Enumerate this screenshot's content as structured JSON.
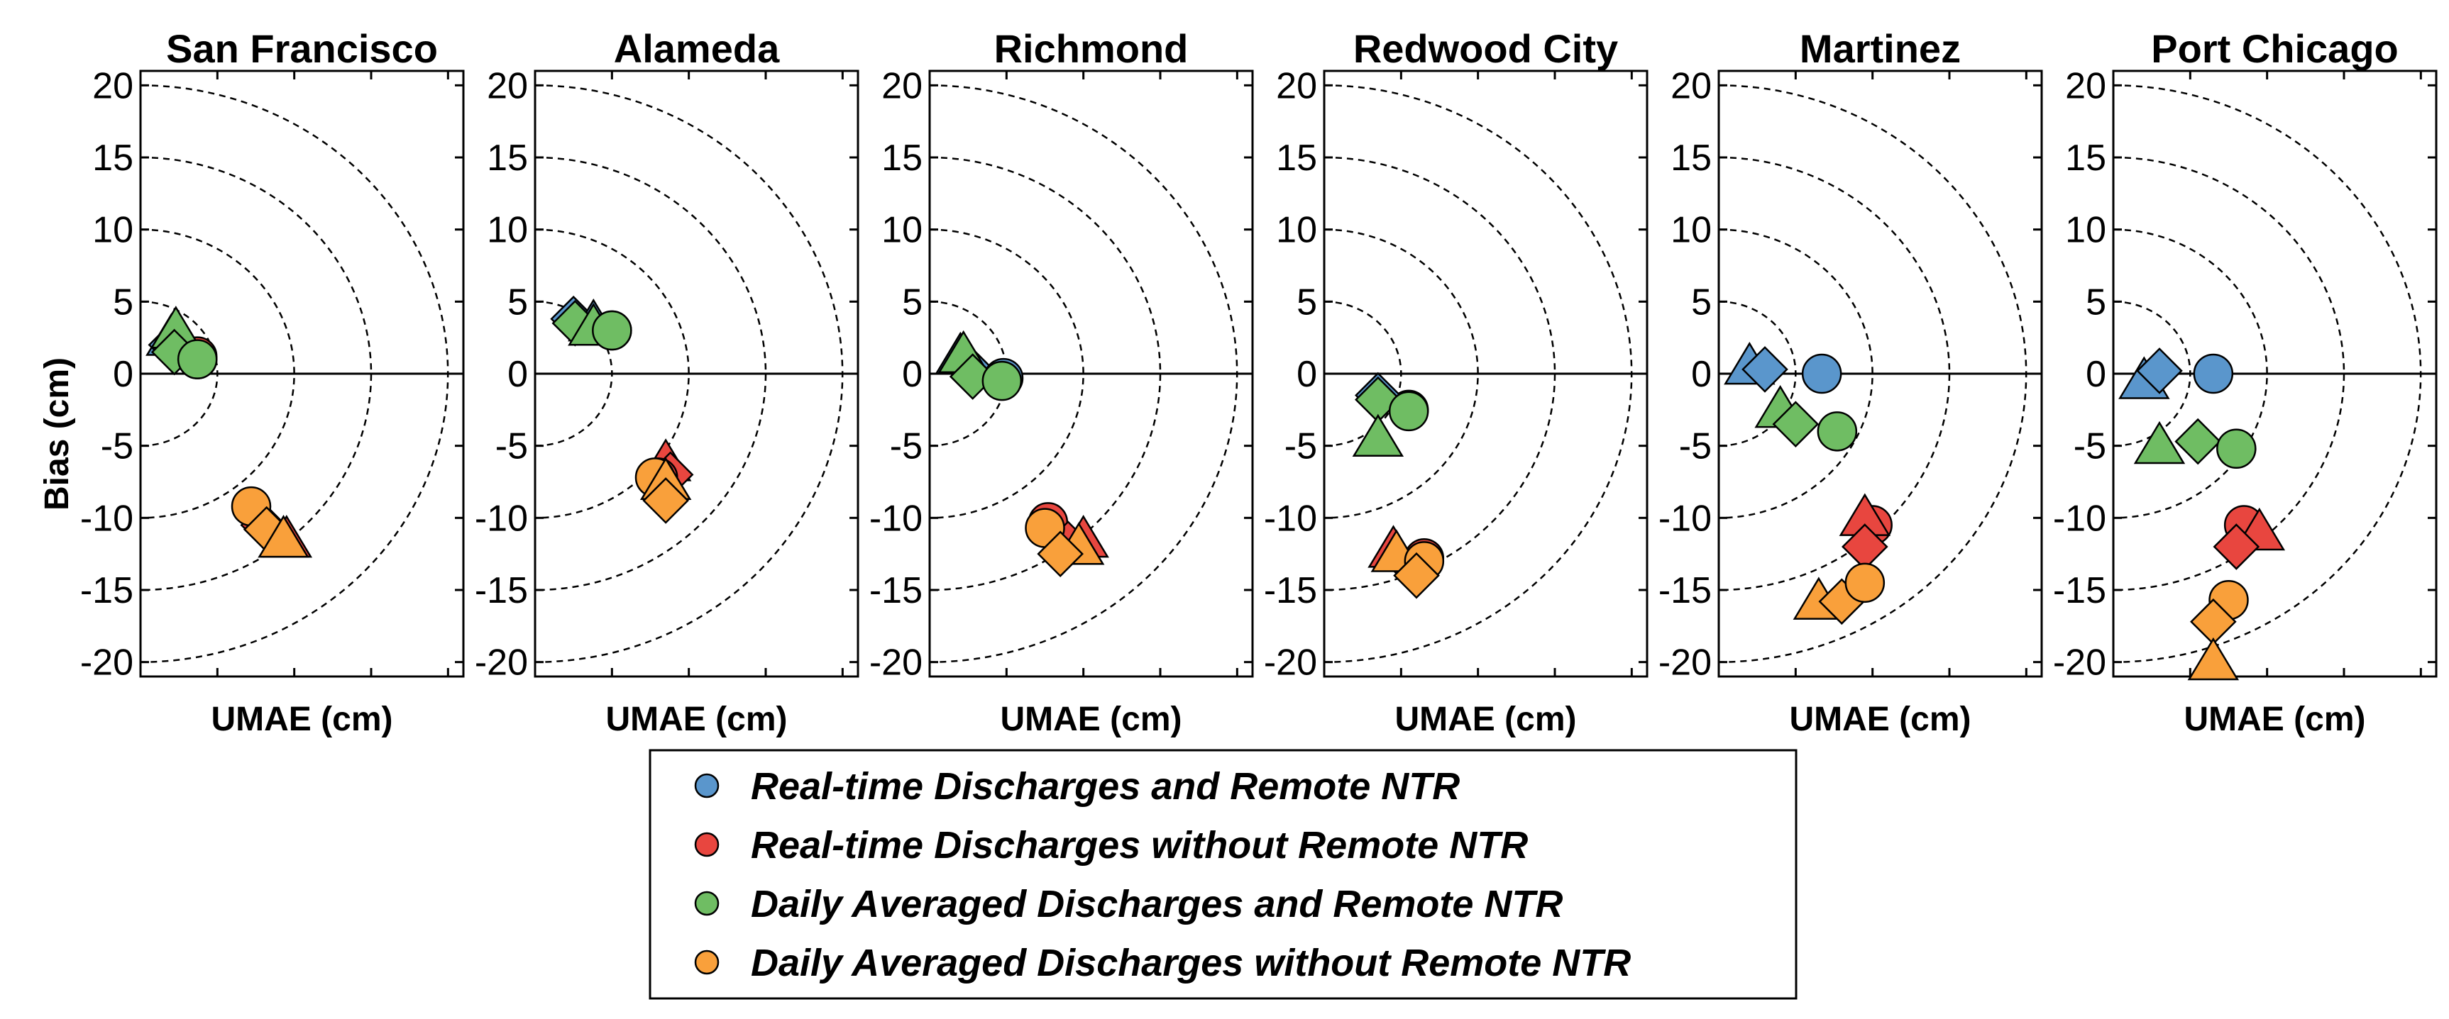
{
  "chart_data": {
    "type": "scatter",
    "ylabel": "Bias (cm)",
    "xlabel": "UMAE (cm)",
    "ylim": [
      -21,
      21
    ],
    "xlim": [
      0,
      21
    ],
    "yticks": [
      20,
      15,
      10,
      5,
      0,
      -5,
      -10,
      -15,
      -20
    ],
    "ytick_labels": [
      "20",
      "15",
      "10",
      "5",
      "0",
      "-5",
      "-10",
      "-15",
      "-20"
    ],
    "xticks": [
      0,
      5,
      10,
      15,
      20
    ],
    "radii": [
      5,
      10,
      15,
      20
    ],
    "colors": {
      "Real-time Discharges and Remote NTR": "#5a96cc",
      "Real-time Discharges without Remote NTR": "#e8463f",
      "Daily Averaged Discharges and Remote NTR": "#6fbd63",
      "Daily Averaged Discharges without Remote NTR": "#f9a03b"
    },
    "legend": [
      "Real-time Discharges and Remote NTR",
      "Real-time Discharges without Remote NTR",
      "Daily Averaged Discharges and Remote NTR",
      "Daily Averaged Discharges without Remote NTR"
    ],
    "legend_position": "bottom-center",
    "panels": [
      {
        "title": "San Francisco",
        "points": [
          {
            "series": 0,
            "marker": "triangle",
            "x": 2.0,
            "y": 2.5
          },
          {
            "series": 0,
            "marker": "diamond",
            "x": 2.0,
            "y": 2.0
          },
          {
            "series": 0,
            "marker": "circle",
            "x": 3.7,
            "y": 1.0
          },
          {
            "series": 1,
            "marker": "circle",
            "x": 3.7,
            "y": 1.2
          },
          {
            "series": 1,
            "marker": "triangle",
            "x": 9.5,
            "y": -11.5
          },
          {
            "series": 1,
            "marker": "diamond",
            "x": 8.0,
            "y": -10.5
          },
          {
            "series": 2,
            "marker": "triangle",
            "x": 2.3,
            "y": 3.0
          },
          {
            "series": 2,
            "marker": "diamond",
            "x": 2.2,
            "y": 1.5
          },
          {
            "series": 2,
            "marker": "circle",
            "x": 3.7,
            "y": 1.0
          },
          {
            "series": 3,
            "marker": "circle",
            "x": 7.2,
            "y": -9.2
          },
          {
            "series": 3,
            "marker": "diamond",
            "x": 8.2,
            "y": -10.8
          },
          {
            "series": 3,
            "marker": "triangle",
            "x": 9.3,
            "y": -11.5
          }
        ]
      },
      {
        "title": "Alameda",
        "points": [
          {
            "series": 0,
            "marker": "diamond",
            "x": 2.5,
            "y": 3.8
          },
          {
            "series": 0,
            "marker": "triangle",
            "x": 3.8,
            "y": 3.5
          },
          {
            "series": 0,
            "marker": "circle",
            "x": 5.0,
            "y": 3.0
          },
          {
            "series": 1,
            "marker": "triangle",
            "x": 8.5,
            "y": -6.2
          },
          {
            "series": 1,
            "marker": "diamond",
            "x": 8.8,
            "y": -7.0
          },
          {
            "series": 1,
            "marker": "circle",
            "x": 8.0,
            "y": -7.2
          },
          {
            "series": 2,
            "marker": "diamond",
            "x": 2.6,
            "y": 3.5
          },
          {
            "series": 2,
            "marker": "triangle",
            "x": 3.8,
            "y": 3.2
          },
          {
            "series": 2,
            "marker": "circle",
            "x": 5.0,
            "y": 3.0
          },
          {
            "series": 3,
            "marker": "circle",
            "x": 7.8,
            "y": -7.2
          },
          {
            "series": 3,
            "marker": "triangle",
            "x": 8.5,
            "y": -7.5
          },
          {
            "series": 3,
            "marker": "diamond",
            "x": 8.5,
            "y": -8.8
          }
        ]
      },
      {
        "title": "Richmond",
        "points": [
          {
            "series": 0,
            "marker": "triangle",
            "x": 2.0,
            "y": 1.2
          },
          {
            "series": 0,
            "marker": "diamond",
            "x": 2.5,
            "y": 0.5
          },
          {
            "series": 0,
            "marker": "circle",
            "x": 4.8,
            "y": -0.3
          },
          {
            "series": 1,
            "marker": "circle",
            "x": 7.7,
            "y": -10.3
          },
          {
            "series": 1,
            "marker": "triangle",
            "x": 10.0,
            "y": -11.5
          },
          {
            "series": 1,
            "marker": "diamond",
            "x": 9.0,
            "y": -11.8
          },
          {
            "series": 2,
            "marker": "triangle",
            "x": 2.2,
            "y": 1.3
          },
          {
            "series": 2,
            "marker": "diamond",
            "x": 2.8,
            "y": -0.2
          },
          {
            "series": 2,
            "marker": "circle",
            "x": 4.7,
            "y": -0.5
          },
          {
            "series": 3,
            "marker": "circle",
            "x": 7.5,
            "y": -10.7
          },
          {
            "series": 3,
            "marker": "triangle",
            "x": 9.7,
            "y": -12.0
          },
          {
            "series": 3,
            "marker": "diamond",
            "x": 8.5,
            "y": -12.5
          }
        ]
      },
      {
        "title": "Redwood City",
        "points": [
          {
            "series": 0,
            "marker": "circle",
            "x": 5.5,
            "y": -2.5
          },
          {
            "series": 0,
            "marker": "diamond",
            "x": 3.5,
            "y": -1.5
          },
          {
            "series": 1,
            "marker": "triangle",
            "x": 4.5,
            "y": -12.2
          },
          {
            "series": 1,
            "marker": "circle",
            "x": 6.5,
            "y": -12.8
          },
          {
            "series": 1,
            "marker": "diamond",
            "x": 5.8,
            "y": -13.5
          },
          {
            "series": 2,
            "marker": "diamond",
            "x": 3.5,
            "y": -1.8
          },
          {
            "series": 2,
            "marker": "circle",
            "x": 5.5,
            "y": -2.6
          },
          {
            "series": 2,
            "marker": "triangle",
            "x": 3.5,
            "y": -4.5
          },
          {
            "series": 3,
            "marker": "triangle",
            "x": 4.7,
            "y": -12.5
          },
          {
            "series": 3,
            "marker": "circle",
            "x": 6.5,
            "y": -13.0
          },
          {
            "series": 3,
            "marker": "diamond",
            "x": 6.0,
            "y": -14.0
          }
        ]
      },
      {
        "title": "Martinez",
        "points": [
          {
            "series": 0,
            "marker": "triangle",
            "x": 2.0,
            "y": 0.5
          },
          {
            "series": 0,
            "marker": "diamond",
            "x": 3.0,
            "y": 0.3
          },
          {
            "series": 0,
            "marker": "circle",
            "x": 6.7,
            "y": 0.0
          },
          {
            "series": 1,
            "marker": "circle",
            "x": 10.0,
            "y": -10.5
          },
          {
            "series": 1,
            "marker": "triangle",
            "x": 9.5,
            "y": -10.0
          },
          {
            "series": 1,
            "marker": "diamond",
            "x": 9.5,
            "y": -12.0
          },
          {
            "series": 2,
            "marker": "triangle",
            "x": 4.0,
            "y": -2.5
          },
          {
            "series": 2,
            "marker": "diamond",
            "x": 5.0,
            "y": -3.5
          },
          {
            "series": 2,
            "marker": "circle",
            "x": 7.7,
            "y": -4.0
          },
          {
            "series": 3,
            "marker": "triangle",
            "x": 6.5,
            "y": -15.8
          },
          {
            "series": 3,
            "marker": "diamond",
            "x": 8.0,
            "y": -15.8
          },
          {
            "series": 3,
            "marker": "circle",
            "x": 9.5,
            "y": -14.5
          }
        ]
      },
      {
        "title": "Port Chicago",
        "points": [
          {
            "series": 0,
            "marker": "triangle",
            "x": 2.0,
            "y": -0.5
          },
          {
            "series": 0,
            "marker": "diamond",
            "x": 3.0,
            "y": 0.2
          },
          {
            "series": 0,
            "marker": "circle",
            "x": 6.5,
            "y": 0.0
          },
          {
            "series": 1,
            "marker": "circle",
            "x": 8.5,
            "y": -10.5
          },
          {
            "series": 1,
            "marker": "triangle",
            "x": 9.5,
            "y": -11.0
          },
          {
            "series": 1,
            "marker": "diamond",
            "x": 8.0,
            "y": -12.0
          },
          {
            "series": 2,
            "marker": "triangle",
            "x": 3.0,
            "y": -5.0
          },
          {
            "series": 2,
            "marker": "diamond",
            "x": 5.5,
            "y": -4.7
          },
          {
            "series": 2,
            "marker": "circle",
            "x": 8.0,
            "y": -5.2
          },
          {
            "series": 3,
            "marker": "circle",
            "x": 7.5,
            "y": -15.7
          },
          {
            "series": 3,
            "marker": "diamond",
            "x": 6.5,
            "y": -17.2
          },
          {
            "series": 3,
            "marker": "triangle",
            "x": 6.5,
            "y": -20.0
          }
        ]
      }
    ]
  }
}
